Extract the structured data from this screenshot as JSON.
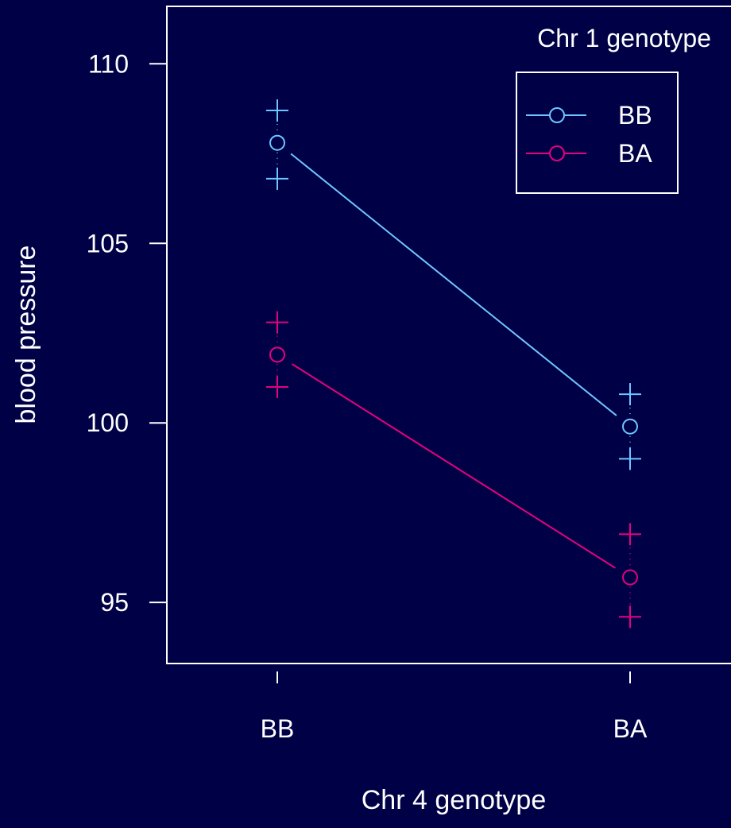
{
  "colors": {
    "background": "#000046",
    "foreground": "#ffffff",
    "series": [
      "#6ec6ff",
      "#e6007e"
    ]
  },
  "chart_data": {
    "type": "line",
    "xlabel": "Chr 4 genotype",
    "ylabel": "blood pressure",
    "categories": [
      "BB",
      "BA"
    ],
    "ylim": [
      93.3,
      111.6
    ],
    "yticks": [
      95,
      100,
      105,
      110
    ],
    "legend": {
      "title": "Chr 1 genotype",
      "position": "top-right"
    },
    "series": [
      {
        "name": "BB",
        "means": [
          107.8,
          99.9
        ],
        "upper": [
          108.7,
          100.8
        ],
        "lower": [
          106.8,
          99.0
        ]
      },
      {
        "name": "BA",
        "means": [
          101.9,
          95.7
        ],
        "upper": [
          102.8,
          96.9
        ],
        "lower": [
          101.0,
          94.6
        ]
      }
    ],
    "grid": false
  }
}
